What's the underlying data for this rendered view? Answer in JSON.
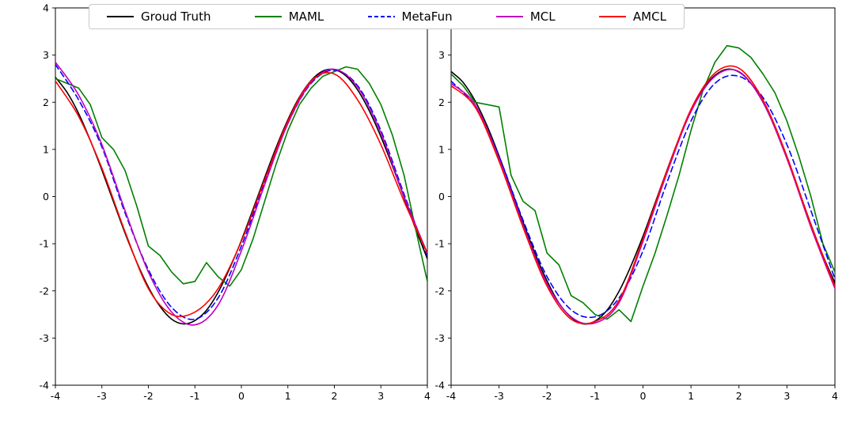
{
  "figure": {
    "background": "#ffffff"
  },
  "legend": {
    "items": [
      {
        "label": "Groud Truth",
        "color": "#000000",
        "style": "solid"
      },
      {
        "label": "MAML",
        "color": "#008000",
        "style": "solid"
      },
      {
        "label": "MetaFun",
        "color": "#0000ff",
        "style": "dashed"
      },
      {
        "label": "MCL",
        "color": "#bf00bf",
        "style": "solid"
      },
      {
        "label": "AMCL",
        "color": "#ff0000",
        "style": "solid"
      }
    ]
  },
  "chart_data": [
    {
      "type": "line",
      "title": "",
      "xlabel": "",
      "ylabel": "",
      "xlim": [
        -4,
        4
      ],
      "ylim": [
        -4,
        4
      ],
      "xticks": [
        -4,
        -3,
        -2,
        -1,
        0,
        1,
        2,
        3,
        4
      ],
      "yticks": [
        -4,
        -3,
        -2,
        -1,
        0,
        1,
        2,
        3,
        4
      ],
      "grid": false,
      "legend_position": "top",
      "series": [
        {
          "name": "Groud Truth",
          "color": "#000000",
          "style": "solid",
          "smooth": true,
          "x": [
            -4,
            -3.75,
            -3.5,
            -3.25,
            -3,
            -2.75,
            -2.5,
            -2.25,
            -2,
            -1.75,
            -1.5,
            -1.25,
            -1,
            -0.75,
            -0.5,
            -0.25,
            0,
            0.25,
            0.5,
            0.75,
            1,
            1.25,
            1.5,
            1.75,
            2,
            2.25,
            2.5,
            2.75,
            3,
            3.25,
            3.5,
            3.75,
            4
          ],
          "y": [
            2.53,
            2.21,
            1.76,
            1.19,
            0.56,
            -0.11,
            -0.78,
            -1.39,
            -1.92,
            -2.33,
            -2.6,
            -2.7,
            -2.63,
            -2.41,
            -2.03,
            -1.52,
            -0.93,
            -0.27,
            0.4,
            1.05,
            1.63,
            2.11,
            2.46,
            2.66,
            2.69,
            2.56,
            2.26,
            1.82,
            1.27,
            0.65,
            -0.02,
            -0.69,
            -1.32
          ]
        },
        {
          "name": "MAML",
          "color": "#008000",
          "style": "solid",
          "smooth": false,
          "x": [
            -4,
            -3.75,
            -3.5,
            -3.25,
            -3,
            -2.75,
            -2.5,
            -2.25,
            -2,
            -1.75,
            -1.5,
            -1.25,
            -1,
            -0.75,
            -0.5,
            -0.25,
            0,
            0.25,
            0.5,
            0.75,
            1,
            1.25,
            1.5,
            1.75,
            2,
            2.25,
            2.5,
            2.75,
            3,
            3.25,
            3.5,
            3.75,
            4
          ],
          "y": [
            2.5,
            2.4,
            2.3,
            1.95,
            1.25,
            1.0,
            0.55,
            -0.2,
            -1.05,
            -1.25,
            -1.6,
            -1.85,
            -1.8,
            -1.4,
            -1.7,
            -1.9,
            -1.55,
            -0.9,
            -0.1,
            0.7,
            1.4,
            1.95,
            2.3,
            2.55,
            2.65,
            2.75,
            2.7,
            2.4,
            1.95,
            1.3,
            0.45,
            -0.7,
            -1.8
          ]
        },
        {
          "name": "MetaFun",
          "color": "#0000ff",
          "style": "dashed",
          "smooth": true,
          "x": [
            -4,
            -3.5,
            -3,
            -2.5,
            -2,
            -1.5,
            -1,
            -0.5,
            0,
            0.5,
            1,
            1.5,
            2,
            2.5,
            3,
            3.5,
            4
          ],
          "y": [
            2.8,
            2.05,
            1.05,
            -0.35,
            -1.55,
            -2.35,
            -2.6,
            -2.15,
            -1.05,
            0.3,
            1.55,
            2.4,
            2.68,
            2.35,
            1.4,
            0.05,
            -1.25
          ]
        },
        {
          "name": "MCL",
          "color": "#bf00bf",
          "style": "solid",
          "smooth": true,
          "x": [
            -4,
            -3.5,
            -3,
            -2.5,
            -2,
            -1.5,
            -1,
            -0.5,
            0,
            0.5,
            1,
            1.5,
            2,
            2.5,
            3,
            3.5,
            4
          ],
          "y": [
            2.85,
            2.15,
            1.1,
            -0.3,
            -1.6,
            -2.45,
            -2.72,
            -2.3,
            -1.15,
            0.25,
            1.55,
            2.42,
            2.7,
            2.32,
            1.35,
            0.0,
            -1.2
          ]
        },
        {
          "name": "AMCL",
          "color": "#ff0000",
          "style": "solid",
          "smooth": true,
          "x": [
            -4,
            -3.5,
            -3,
            -2.5,
            -2,
            -1.5,
            -1,
            -0.5,
            0,
            0.5,
            1,
            1.5,
            2,
            2.5,
            3,
            3.5,
            4
          ],
          "y": [
            2.45,
            1.7,
            0.6,
            -0.75,
            -1.95,
            -2.5,
            -2.45,
            -1.95,
            -0.95,
            0.35,
            1.6,
            2.45,
            2.6,
            2.05,
            1.1,
            -0.1,
            -1.2
          ]
        }
      ]
    },
    {
      "type": "line",
      "title": "",
      "xlabel": "",
      "ylabel": "",
      "xlim": [
        -4,
        4
      ],
      "ylim": [
        -4,
        4
      ],
      "xticks": [
        -4,
        -3,
        -2,
        -1,
        0,
        1,
        2,
        3,
        4
      ],
      "yticks": [
        -4,
        -3,
        -2,
        -1,
        0,
        1,
        2,
        3,
        4
      ],
      "grid": false,
      "legend_position": "top",
      "series": [
        {
          "name": "Groud Truth",
          "color": "#000000",
          "style": "solid",
          "smooth": true,
          "x": [
            -4,
            -3.75,
            -3.5,
            -3.25,
            -3,
            -2.75,
            -2.5,
            -2.25,
            -2,
            -1.75,
            -1.5,
            -1.25,
            -1,
            -0.75,
            -0.5,
            -0.25,
            0,
            0.25,
            0.5,
            0.75,
            1,
            1.25,
            1.5,
            1.75,
            2,
            2.25,
            2.5,
            2.75,
            3,
            3.25,
            3.5,
            3.75,
            4
          ],
          "y": [
            2.65,
            2.42,
            2.03,
            1.5,
            0.86,
            0.16,
            -0.54,
            -1.21,
            -1.79,
            -2.26,
            -2.56,
            -2.7,
            -2.64,
            -2.41,
            -2.01,
            -1.47,
            -0.84,
            -0.14,
            0.56,
            1.23,
            1.81,
            2.27,
            2.57,
            2.7,
            2.64,
            2.4,
            2.0,
            1.46,
            0.81,
            0.12,
            -0.59,
            -1.25,
            -1.83
          ]
        },
        {
          "name": "MAML",
          "color": "#008000",
          "style": "solid",
          "smooth": false,
          "x": [
            -4,
            -3.75,
            -3.5,
            -3.25,
            -3,
            -2.75,
            -2.5,
            -2.25,
            -2,
            -1.75,
            -1.5,
            -1.25,
            -1,
            -0.75,
            -0.5,
            -0.25,
            0,
            0.25,
            0.5,
            0.75,
            1,
            1.25,
            1.5,
            1.75,
            2,
            2.25,
            2.5,
            2.75,
            3,
            3.25,
            3.5,
            3.75,
            4
          ],
          "y": [
            2.6,
            2.35,
            2.0,
            1.95,
            1.9,
            0.45,
            -0.1,
            -0.3,
            -1.2,
            -1.45,
            -2.1,
            -2.25,
            -2.5,
            -2.6,
            -2.4,
            -2.65,
            -1.9,
            -1.2,
            -0.4,
            0.45,
            1.4,
            2.25,
            2.85,
            3.2,
            3.15,
            2.95,
            2.6,
            2.2,
            1.6,
            0.85,
            0.0,
            -1.0,
            -1.6
          ]
        },
        {
          "name": "MetaFun",
          "color": "#0000ff",
          "style": "dashed",
          "smooth": true,
          "x": [
            -4,
            -3.5,
            -3,
            -2.5,
            -2,
            -1.5,
            -1,
            -0.5,
            0,
            0.5,
            1,
            1.5,
            2,
            2.5,
            3,
            3.5,
            4
          ],
          "y": [
            2.45,
            1.9,
            0.85,
            -0.5,
            -1.7,
            -2.4,
            -2.55,
            -2.15,
            -1.15,
            0.3,
            1.6,
            2.4,
            2.55,
            2.1,
            1.1,
            -0.3,
            -1.75
          ]
        },
        {
          "name": "MCL",
          "color": "#bf00bf",
          "style": "solid",
          "smooth": true,
          "x": [
            -4,
            -3.5,
            -3,
            -2.5,
            -2,
            -1.5,
            -1,
            -0.5,
            0,
            0.5,
            1,
            1.5,
            2,
            2.5,
            3,
            3.5,
            4
          ],
          "y": [
            2.4,
            1.95,
            0.8,
            -0.6,
            -1.85,
            -2.55,
            -2.68,
            -2.25,
            -0.95,
            0.5,
            1.8,
            2.55,
            2.65,
            2.0,
            0.8,
            -0.65,
            -1.95
          ]
        },
        {
          "name": "AMCL",
          "color": "#ff0000",
          "style": "solid",
          "smooth": true,
          "x": [
            -4,
            -3.5,
            -3,
            -2.5,
            -2,
            -1.5,
            -1,
            -0.5,
            0,
            0.5,
            1,
            1.5,
            2,
            2.5,
            3,
            3.5,
            4
          ],
          "y": [
            2.35,
            1.9,
            0.75,
            -0.65,
            -1.9,
            -2.6,
            -2.65,
            -2.2,
            -0.9,
            0.55,
            1.85,
            2.62,
            2.72,
            2.05,
            0.85,
            -0.6,
            -1.9
          ]
        }
      ]
    }
  ]
}
